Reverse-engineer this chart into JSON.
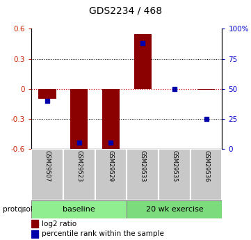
{
  "title": "GDS2234 / 468",
  "samples": [
    "GSM29507",
    "GSM29523",
    "GSM29529",
    "GSM29533",
    "GSM29535",
    "GSM29536"
  ],
  "log2_ratio": [
    -0.1,
    -0.62,
    -0.62,
    0.55,
    0.0,
    -0.01
  ],
  "percentile_rank": [
    40,
    5,
    5,
    88,
    50,
    25
  ],
  "n_baseline": 3,
  "n_exercise": 3,
  "ylim_left": [
    -0.6,
    0.6
  ],
  "ylim_right": [
    0,
    100
  ],
  "yticks_left": [
    -0.6,
    -0.3,
    0.0,
    0.3,
    0.6
  ],
  "ytick_labels_left": [
    "-0.6",
    "-0.3",
    "0",
    "0.3",
    "0.6"
  ],
  "yticks_right": [
    0,
    25,
    50,
    75,
    100
  ],
  "ytick_labels_right": [
    "0",
    "25",
    "50",
    "75",
    "100%"
  ],
  "bar_color": "#8B0000",
  "dot_color": "#0000AA",
  "zero_line_color": "#CC0000",
  "baseline_color": "#90EE90",
  "exercise_color": "#7CDB7C",
  "sample_box_color": "#C8C8C8",
  "background_color": "#FFFFFF",
  "left_tick_color": "#CC2200",
  "right_tick_color": "#0000CC",
  "bar_width": 0.55
}
